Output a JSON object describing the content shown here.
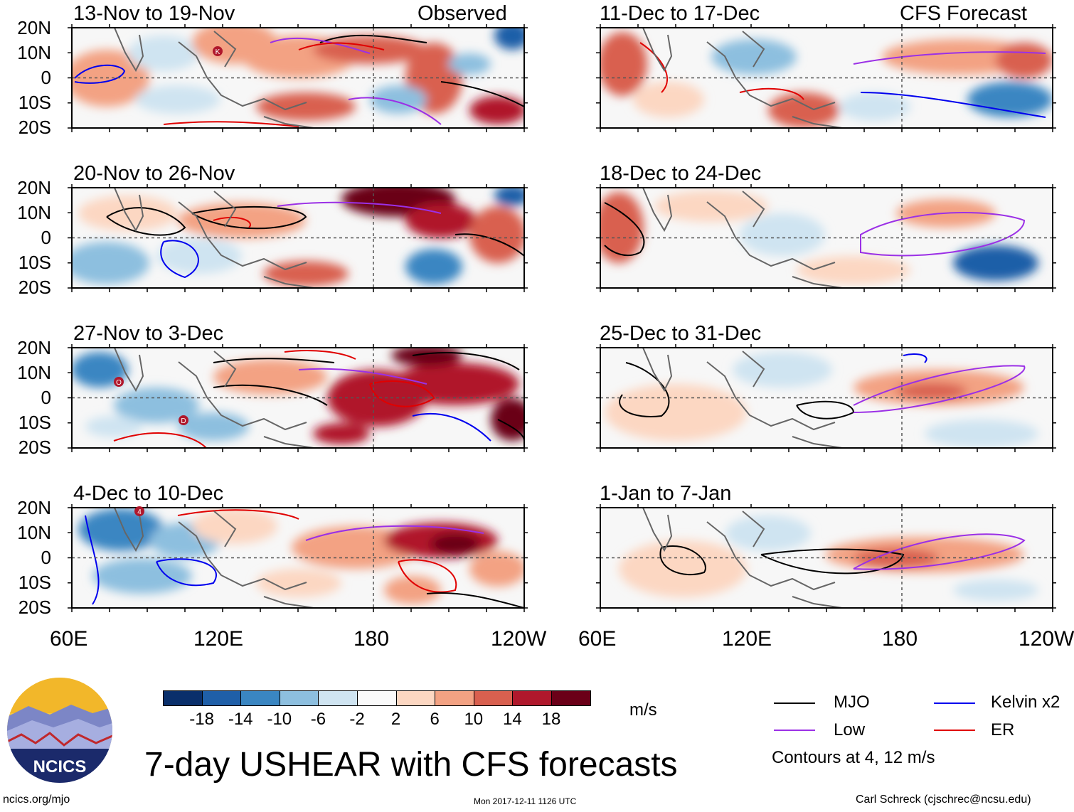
{
  "header": {
    "left_label": "Observed",
    "right_label": "CFS Forecast"
  },
  "panels_left": [
    {
      "title": "13-Nov to 19-Nov"
    },
    {
      "title": "20-Nov to 26-Nov"
    },
    {
      "title": "27-Nov to 3-Dec"
    },
    {
      "title": "4-Dec to 10-Dec"
    }
  ],
  "panels_right": [
    {
      "title": "11-Dec to 17-Dec"
    },
    {
      "title": "18-Dec to 24-Dec"
    },
    {
      "title": "25-Dec to 31-Dec"
    },
    {
      "title": "1-Jan to 7-Jan"
    }
  ],
  "y_ticks": [
    "20N",
    "10N",
    "0",
    "10S",
    "20S"
  ],
  "x_ticks": [
    "60E",
    "120E",
    "180",
    "120W"
  ],
  "colorbar": {
    "colors": [
      "#0a2f6b",
      "#1f5fa8",
      "#3a86c2",
      "#8dbfdf",
      "#cfe4f1",
      "#fafafa",
      "#fcd7c2",
      "#f3a283",
      "#d9604f",
      "#b0182c",
      "#6b0018"
    ],
    "ticks": [
      "-18",
      "-14",
      "-10",
      "-6",
      "-2",
      "2",
      "6",
      "10",
      "14",
      "18"
    ],
    "units": "m/s"
  },
  "legend": {
    "items": [
      {
        "label": "MJO",
        "color": "#000000"
      },
      {
        "label": "Kelvin x2",
        "color": "#0000ee"
      },
      {
        "label": "Low",
        "color": "#9b30e6"
      },
      {
        "label": "ER",
        "color": "#e00000"
      }
    ],
    "note": "Contours at 4, 12 m/s"
  },
  "title": "7-day USHEAR with CFS forecasts",
  "footer": {
    "logo_text": "NCICS",
    "url": "ncics.org/mjo",
    "timestamp": "Mon 2017-12-11 1126 UTC",
    "credit": "Carl Schreck (cjschrec@ncsu.edu)"
  },
  "storm_markers": [
    "K",
    "O",
    "D",
    "4"
  ]
}
